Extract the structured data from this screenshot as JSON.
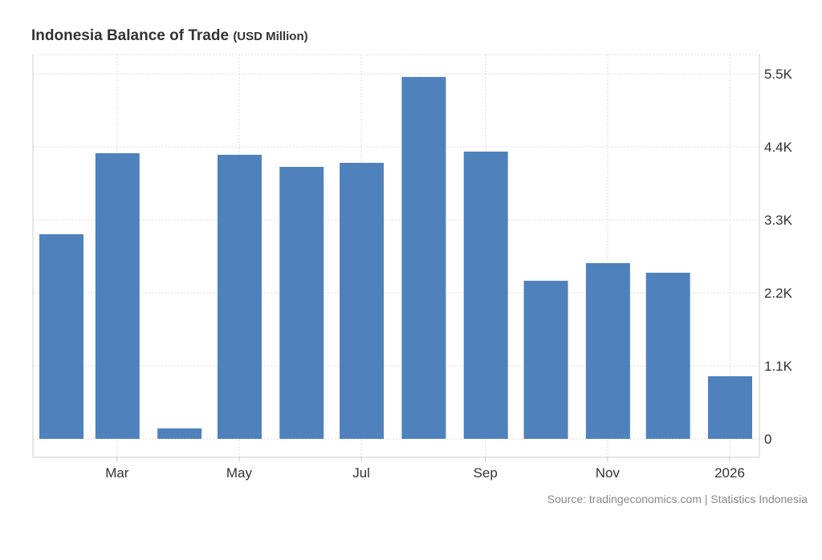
{
  "chart_data": {
    "type": "bar",
    "title": "Indonesia Balance of Trade",
    "unit": "(USD Million)",
    "source": "Source: tradingeconomics.com | Statistics Indonesia",
    "categories": [
      "2025-02",
      "2025-03",
      "2025-04",
      "2025-05",
      "2025-06",
      "2025-07",
      "2025-08",
      "2025-09",
      "2025-10",
      "2025-11",
      "2025-12",
      "2026-01"
    ],
    "values": [
      3083,
      4304,
      157,
      4280,
      4098,
      4159,
      5453,
      4328,
      2382,
      2648,
      2503,
      943
    ],
    "ylim": [
      -270,
      5820
    ],
    "y_ticks": [
      {
        "v": 0,
        "label": "0"
      },
      {
        "v": 1100,
        "label": "1.1K"
      },
      {
        "v": 2200,
        "label": "2.2K"
      },
      {
        "v": 3300,
        "label": "3.3K"
      },
      {
        "v": 4400,
        "label": "4.4K"
      },
      {
        "v": 5500,
        "label": "5.5K"
      }
    ],
    "x_ticks": [
      {
        "month": 1,
        "label": "Mar"
      },
      {
        "month": 3,
        "label": "May"
      },
      {
        "month": 5,
        "label": "Jul"
      },
      {
        "month": 7,
        "label": "Sep"
      },
      {
        "month": 9,
        "label": "Nov"
      },
      {
        "month": 11,
        "label": "2026"
      }
    ],
    "bar_color": "#4f81bd",
    "grid": true,
    "legend": "none"
  }
}
